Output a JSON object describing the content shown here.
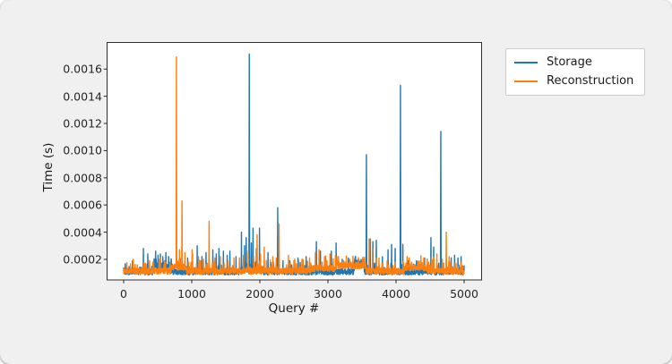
{
  "window": {
    "background": "#f0f0f0",
    "plot_background": "#ffffff"
  },
  "chart_data": {
    "type": "line",
    "title": "",
    "xlabel": "Query #",
    "ylabel": "Time (s)",
    "grid": false,
    "legend_position": "upper right, outside axes",
    "xlim": [
      -243,
      5257
    ],
    "ylim": [
      4.87e-05,
      0.0018
    ],
    "x_range_queries": [
      0,
      5000
    ],
    "xticks": [
      {
        "value": 0,
        "label": "0"
      },
      {
        "value": 1000,
        "label": "1000"
      },
      {
        "value": 2000,
        "label": "2000"
      },
      {
        "value": 3000,
        "label": "3000"
      },
      {
        "value": 4000,
        "label": "4000"
      },
      {
        "value": 5000,
        "label": "5000"
      }
    ],
    "yticks": [
      {
        "value": 0.0002,
        "label": "0.0002"
      },
      {
        "value": 0.0004,
        "label": "0.0004"
      },
      {
        "value": 0.0006,
        "label": "0.0006"
      },
      {
        "value": 0.0008,
        "label": "0.0008"
      },
      {
        "value": 0.001,
        "label": "0.0010"
      },
      {
        "value": 0.0012,
        "label": "0.0012"
      },
      {
        "value": 0.0014,
        "label": "0.0014"
      },
      {
        "value": 0.0016,
        "label": "0.0016"
      }
    ],
    "series": [
      {
        "name": "Storage",
        "color": "#1f77b4",
        "baseline": 7.8e-05,
        "noise_amplitude": 5e-05,
        "spike_chance": 0.12,
        "spike_mult": 1.1,
        "seed": 7,
        "elevated_regions": [
          [
            430,
            700,
            4e-05
          ],
          [
            3390,
            3530,
            7e-05
          ],
          [
            1700,
            2050,
            2e-05
          ]
        ],
        "spikes": [
          [
            130,
            0.00019
          ],
          [
            290,
            0.00028
          ],
          [
            355,
            0.00024
          ],
          [
            470,
            0.00026
          ],
          [
            505,
            0.00023
          ],
          [
            540,
            0.00024
          ],
          [
            575,
            0.00022
          ],
          [
            620,
            0.00025
          ],
          [
            660,
            0.00022
          ],
          [
            700,
            0.0002
          ],
          [
            940,
            0.00021
          ],
          [
            1010,
            0.00024
          ],
          [
            1080,
            0.0003
          ],
          [
            1150,
            0.00022
          ],
          [
            1210,
            0.00025
          ],
          [
            1310,
            0.00027
          ],
          [
            1360,
            0.00024
          ],
          [
            1400,
            0.00028
          ],
          [
            1465,
            0.00026
          ],
          [
            1520,
            0.00023
          ],
          [
            1560,
            0.00026
          ],
          [
            1650,
            0.00022
          ],
          [
            1730,
            0.0004
          ],
          [
            1775,
            0.0003
          ],
          [
            1800,
            0.00036
          ],
          [
            1845,
            0.00171
          ],
          [
            1875,
            0.00032
          ],
          [
            1900,
            0.00043
          ],
          [
            1950,
            0.00028
          ],
          [
            1995,
            0.00043
          ],
          [
            2120,
            0.00025
          ],
          [
            2262,
            0.00058
          ],
          [
            2340,
            0.00019
          ],
          [
            2440,
            0.00019
          ],
          [
            2560,
            0.00021
          ],
          [
            2620,
            0.0002
          ],
          [
            2680,
            0.00022
          ],
          [
            2830,
            0.00033
          ],
          [
            2890,
            0.00026
          ],
          [
            2960,
            0.00021
          ],
          [
            3050,
            0.00026
          ],
          [
            3120,
            0.00032
          ],
          [
            3210,
            0.0002
          ],
          [
            3300,
            0.00021
          ],
          [
            3430,
            0.00019
          ],
          [
            3566,
            0.00097
          ],
          [
            3620,
            0.00035
          ],
          [
            3660,
            0.00033
          ],
          [
            3711,
            0.00034
          ],
          [
            3800,
            0.00022
          ],
          [
            3882,
            0.00027
          ],
          [
            3934,
            0.00031
          ],
          [
            3987,
            0.00028
          ],
          [
            4066,
            0.00148
          ],
          [
            4100,
            0.00031
          ],
          [
            4180,
            0.00019
          ],
          [
            4300,
            0.00019
          ],
          [
            4420,
            0.00021
          ],
          [
            4513,
            0.00036
          ],
          [
            4553,
            0.00029
          ],
          [
            4658,
            0.00114
          ],
          [
            4740,
            0.0002
          ],
          [
            4810,
            0.00021
          ],
          [
            4860,
            0.00023
          ],
          [
            4910,
            0.00021
          ],
          [
            4955,
            0.00022
          ]
        ]
      },
      {
        "name": "Reconstruction",
        "color": "#ff7f0e",
        "baseline": 8.2e-05,
        "noise_amplitude": 5.5e-05,
        "spike_chance": 0.07,
        "spike_mult": 1.6,
        "seed": 13,
        "elevated_regions": [
          [
            700,
            920,
            3e-05
          ],
          [
            3130,
            3560,
            4e-05
          ],
          [
            4130,
            4460,
            2.5e-05
          ],
          [
            2750,
            3150,
            2e-05
          ]
        ],
        "spikes": [
          [
            200,
            0.00016
          ],
          [
            320,
            0.00017
          ],
          [
            430,
            0.00018
          ],
          [
            520,
            0.0002
          ],
          [
            600,
            0.00019
          ],
          [
            680,
            0.00018
          ],
          [
            776,
            0.00169
          ],
          [
            820,
            0.00027
          ],
          [
            858,
            0.00063
          ],
          [
            900,
            0.00025
          ],
          [
            1005,
            0.00027
          ],
          [
            1100,
            0.00022
          ],
          [
            1175,
            0.0002
          ],
          [
            1255,
            0.00048
          ],
          [
            1340,
            0.00021
          ],
          [
            1420,
            0.00022
          ],
          [
            1530,
            0.00019
          ],
          [
            1620,
            0.00021
          ],
          [
            1700,
            0.00021
          ],
          [
            1760,
            0.00023
          ],
          [
            1830,
            0.00026
          ],
          [
            1910,
            0.00022
          ],
          [
            1960,
            0.00038
          ],
          [
            2010,
            0.00024
          ],
          [
            2066,
            0.00029
          ],
          [
            2190,
            0.00022
          ],
          [
            2282,
            0.00046
          ],
          [
            2421,
            0.00023
          ],
          [
            2500,
            0.00019
          ],
          [
            2620,
            0.0002
          ],
          [
            2730,
            0.00021
          ],
          [
            2816,
            0.00025
          ],
          [
            2870,
            0.00027
          ],
          [
            2950,
            0.00022
          ],
          [
            3030,
            0.00024
          ],
          [
            3110,
            0.00023
          ],
          [
            3230,
            0.00019
          ],
          [
            3340,
            0.00018
          ],
          [
            3605,
            0.00035
          ],
          [
            3655,
            0.00028
          ],
          [
            3750,
            0.00021
          ],
          [
            3870,
            0.00019
          ],
          [
            3990,
            0.00018
          ],
          [
            4110,
            0.00017
          ],
          [
            4230,
            0.00018
          ],
          [
            4360,
            0.00019
          ],
          [
            4480,
            0.00018
          ],
          [
            4600,
            0.00024
          ],
          [
            4680,
            0.0002
          ],
          [
            4737,
            0.0004
          ],
          [
            4800,
            0.00018
          ],
          [
            4880,
            0.00017
          ],
          [
            4950,
            0.00018
          ]
        ]
      }
    ]
  }
}
